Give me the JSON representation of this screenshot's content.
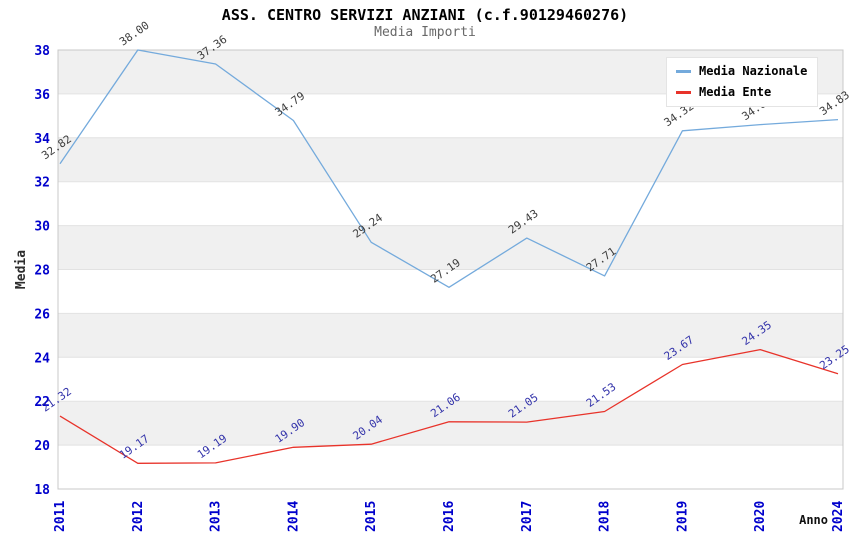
{
  "chart_data": {
    "type": "line",
    "title": "ASS. CENTRO SERVIZI ANZIANI (c.f.90129460276)",
    "subtitle": "Media Importi",
    "xlabel": "Anno",
    "ylabel": "Media",
    "categories": [
      "2011",
      "2012",
      "2013",
      "2014",
      "2015",
      "2016",
      "2017",
      "2018",
      "2019",
      "2020",
      "2024"
    ],
    "series": [
      {
        "name": "Media Nazionale",
        "color": "#74aadc",
        "label_color": "#3c3c3c",
        "values": [
          32.82,
          38.0,
          37.36,
          34.79,
          29.24,
          27.19,
          29.43,
          27.71,
          34.32,
          34.6,
          34.83
        ]
      },
      {
        "name": "Media Ente",
        "color": "#e8332a",
        "label_color": "#3333aa",
        "values": [
          21.32,
          19.17,
          19.19,
          19.9,
          20.04,
          21.06,
          21.05,
          21.53,
          23.67,
          24.35,
          23.25
        ]
      }
    ],
    "ylim": [
      18,
      38
    ],
    "yticks": [
      38,
      36,
      34,
      32,
      30,
      28,
      26,
      24,
      22,
      20,
      18
    ],
    "axis_tick_color": "#0000cc",
    "band_color": "#f0f0f0",
    "grid_color": "#e2e2e2",
    "border_color": "#c8c8c8",
    "legend_position": "top-right",
    "grid": "horizontal-bands",
    "value_label_decimals": 2
  }
}
